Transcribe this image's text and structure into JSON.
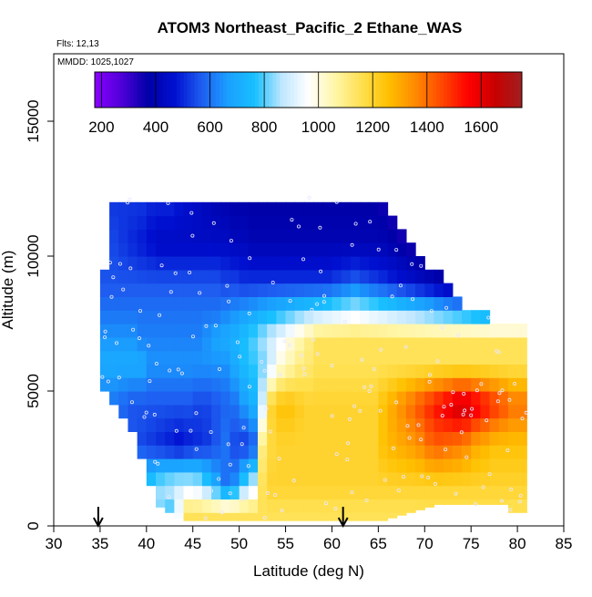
{
  "chart_data": {
    "type": "heatmap",
    "title": "ATOM3 Northeast_Pacific_2 Ethane_WAS",
    "flights_note": "Flts: 12,13",
    "dates_note": "MMDD: 1025,1027",
    "xlabel": "Latitude (deg N)",
    "ylabel": "Altitude (m)",
    "xlim": [
      30,
      85
    ],
    "ylim": [
      0,
      17500
    ],
    "x_ticks": [
      "30",
      "35",
      "40",
      "45",
      "50",
      "55",
      "60",
      "65",
      "70",
      "75",
      "80",
      "85"
    ],
    "y_ticks": [
      "0",
      "5000",
      "10000",
      "15000"
    ],
    "colorbar": {
      "range": [
        175,
        1750
      ],
      "tick_labels": [
        "200",
        "400",
        "600",
        "800",
        "1000",
        "1200",
        "1400",
        "1600"
      ],
      "stops": [
        "#8a00ff",
        "#4f00d8",
        "#0000a8",
        "#0010d0",
        "#1e5cf0",
        "#1aa0ff",
        "#18c0ff",
        "#bde6ff",
        "#ffffff",
        "#fff6a8",
        "#ffe050",
        "#ffc000",
        "#ff8a00",
        "#ff4800",
        "#ff0000",
        "#c80000",
        "#a02020"
      ]
    },
    "marker_latitudes": [
      34.8,
      61.2
    ],
    "grid": false,
    "latitude_bins": [
      35,
      36,
      37,
      38,
      39,
      40,
      41,
      42,
      43,
      44,
      45,
      46,
      47,
      48,
      49,
      50,
      51,
      52,
      53,
      54,
      55,
      56,
      57,
      58,
      59,
      60,
      61,
      62,
      63,
      64,
      65,
      66,
      67,
      68,
      69,
      70,
      71,
      72,
      73,
      74,
      75,
      76,
      77,
      78,
      79,
      80
    ],
    "altitude_levels": [
      500,
      1000,
      1500,
      2000,
      2500,
      3000,
      3500,
      4000,
      4500,
      5000,
      5500,
      6000,
      6500,
      7000,
      7500,
      8000,
      8500,
      9000,
      9500,
      10000,
      10500,
      11000,
      11500,
      12000
    ],
    "profile_altitudes": [
      500,
      1500,
      3000,
      4500,
      6000,
      7000,
      8000,
      9000,
      10500,
      12000
    ],
    "profile_values": [
      [
        1050,
        1000,
        900,
        900,
        850,
        800,
        820,
        780,
        950,
        1150,
        1150,
        1150,
        1150,
        1150,
        1150,
        1150,
        1150,
        1150,
        1150,
        1150,
        1150,
        1150,
        1150,
        1150,
        1150,
        1150,
        1150,
        1150,
        1150,
        1150,
        1150,
        1150,
        1150,
        1150,
        1150,
        1150,
        1150,
        1150,
        1150,
        1150,
        1150,
        1150,
        1150,
        1150,
        1150,
        1150
      ],
      [
        700,
        680,
        700,
        750,
        780,
        800,
        850,
        880,
        900,
        900,
        880,
        800,
        700,
        600,
        650,
        800,
        900,
        1150,
        1200,
        1200,
        1200,
        1200,
        1200,
        1200,
        1200,
        1200,
        1200,
        1200,
        1200,
        1200,
        1200,
        1200,
        1200,
        1200,
        1200,
        1200,
        1200,
        1200,
        1200,
        1200,
        1200,
        1200,
        1200,
        1200,
        1200,
        1200
      ],
      [
        650,
        620,
        600,
        560,
        540,
        520,
        500,
        480,
        460,
        480,
        500,
        520,
        560,
        600,
        540,
        520,
        560,
        1100,
        1180,
        1200,
        1200,
        1200,
        1200,
        1200,
        1200,
        1200,
        1200,
        1200,
        1200,
        1200,
        1250,
        1280,
        1300,
        1320,
        1350,
        1400,
        1420,
        1400,
        1380,
        1350,
        1300,
        1280,
        1250,
        1250,
        1250,
        1250
      ],
      [
        600,
        600,
        580,
        560,
        560,
        560,
        560,
        560,
        560,
        560,
        540,
        540,
        560,
        580,
        600,
        660,
        720,
        900,
        1200,
        1250,
        1250,
        1220,
        1200,
        1200,
        1200,
        1200,
        1200,
        1200,
        1200,
        1200,
        1250,
        1300,
        1350,
        1400,
        1450,
        1500,
        1550,
        1600,
        1650,
        1650,
        1600,
        1550,
        1500,
        1450,
        1400,
        1400
      ],
      [
        700,
        700,
        700,
        700,
        700,
        650,
        650,
        650,
        650,
        650,
        650,
        650,
        650,
        650,
        700,
        750,
        780,
        820,
        900,
        1000,
        1050,
        1100,
        1120,
        1150,
        1150,
        1150,
        1150,
        1150,
        1150,
        1150,
        1150,
        1150,
        1150,
        1150,
        1150,
        1150,
        1150,
        1150,
        1150,
        1150,
        1150,
        1150,
        1150,
        1150,
        1150,
        1150
      ],
      [
        650,
        650,
        650,
        650,
        620,
        620,
        620,
        620,
        620,
        620,
        620,
        650,
        680,
        700,
        720,
        760,
        800,
        850,
        900,
        950,
        1000,
        1050,
        1100,
        1150,
        1150,
        1150,
        1150,
        1150,
        1150,
        1150,
        1150,
        1150,
        1150,
        1150,
        1150,
        1150,
        1150,
        1150,
        1150,
        1150,
        1150,
        1150,
        1150,
        1150,
        1150,
        1150
      ],
      [
        600,
        600,
        600,
        600,
        600,
        600,
        600,
        600,
        600,
        600,
        600,
        600,
        600,
        620,
        640,
        660,
        680,
        700,
        720,
        740,
        760,
        780,
        800,
        820,
        840,
        860,
        880,
        900,
        880,
        860,
        840,
        820,
        800,
        780,
        760,
        740,
        720,
        700,
        680,
        660,
        640,
        620,
        600,
        600,
        600,
        600
      ],
      [
        560,
        560,
        560,
        560,
        560,
        560,
        560,
        560,
        560,
        560,
        560,
        560,
        560,
        540,
        540,
        520,
        520,
        520,
        520,
        520,
        520,
        520,
        520,
        520,
        520,
        540,
        560,
        580,
        560,
        540,
        520,
        500,
        480,
        460,
        440,
        420,
        400,
        380,
        360,
        340,
        330,
        320,
        320,
        320,
        320,
        320
      ],
      [
        540,
        540,
        520,
        500,
        480,
        460,
        440,
        440,
        440,
        440,
        440,
        440,
        440,
        440,
        420,
        420,
        400,
        400,
        400,
        400,
        400,
        400,
        400,
        400,
        400,
        400,
        400,
        400,
        400,
        400,
        400,
        380,
        360,
        340,
        320,
        300,
        280,
        260,
        250,
        250,
        250,
        250,
        250,
        250,
        250,
        250
      ],
      [
        520,
        520,
        520,
        520,
        520,
        500,
        500,
        500,
        480,
        460,
        440,
        420,
        400,
        390,
        380,
        380,
        370,
        370,
        370,
        370,
        370,
        370,
        370,
        370,
        370,
        370,
        370,
        370,
        370,
        370,
        350,
        330,
        310,
        290,
        270,
        250,
        250,
        250,
        250,
        250,
        250,
        250,
        250,
        250,
        250,
        250
      ]
    ],
    "coverage_top_altitude_by_latitude": [
      9500,
      12500,
      12500,
      12500,
      12500,
      12500,
      12500,
      12500,
      12500,
      12500,
      12500,
      12500,
      12500,
      12500,
      12500,
      12500,
      12500,
      12500,
      12500,
      12500,
      12500,
      12500,
      12500,
      12500,
      12500,
      12500,
      12500,
      12500,
      12500,
      12500,
      12000,
      11500,
      11000,
      10500,
      10000,
      9500,
      9500,
      9000,
      8500,
      8000,
      8000,
      8000,
      7500,
      7500,
      7500,
      7500
    ],
    "coverage_bottom_altitude_by_latitude": [
      5000,
      4500,
      4000,
      3500,
      2500,
      1500,
      700,
      500,
      300,
      200,
      200,
      200,
      200,
      200,
      200,
      200,
      200,
      200,
      200,
      200,
      200,
      200,
      200,
      200,
      200,
      200,
      200,
      200,
      200,
      200,
      200,
      300,
      400,
      500,
      600,
      700,
      800,
      800,
      800,
      800,
      800,
      800,
      800,
      800,
      500,
      500
    ]
  }
}
